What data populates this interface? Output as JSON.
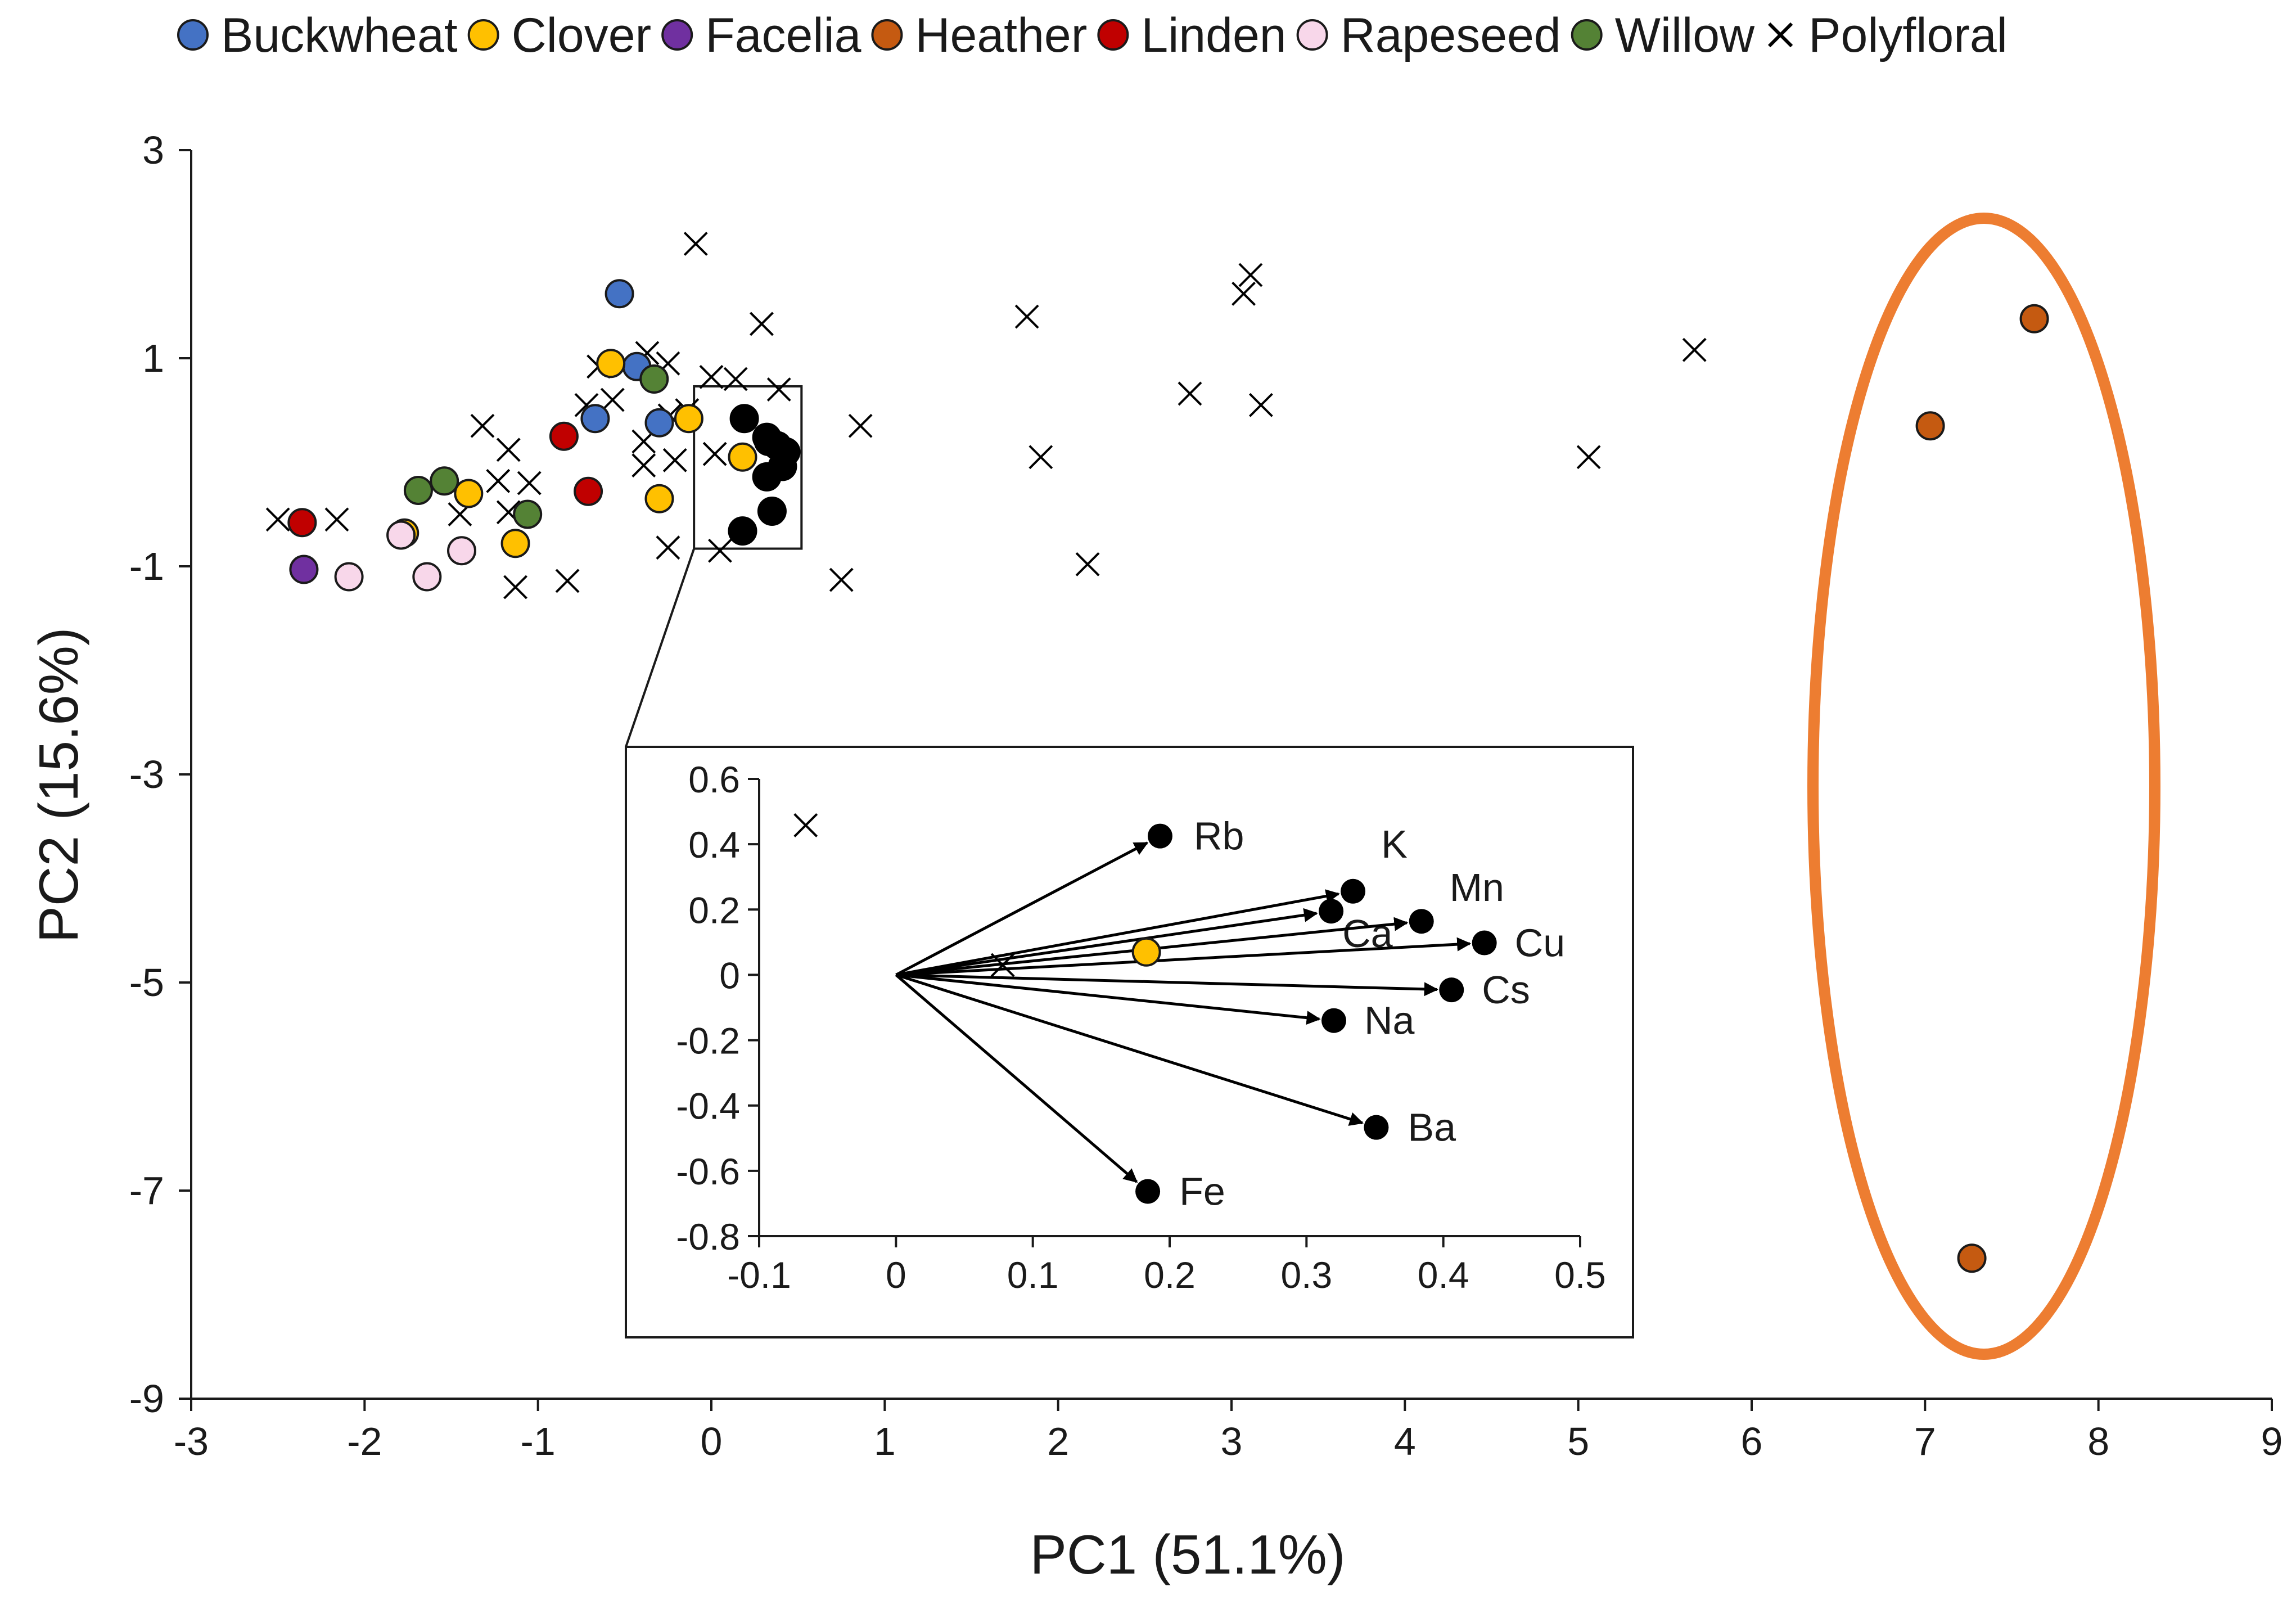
{
  "chart_data": {
    "type": "scatter",
    "title": "",
    "xlabel": "PC1 (51.1%)",
    "ylabel": "PC2 (15.6%)",
    "xlim": [
      -3,
      9
    ],
    "ylim": [
      -9,
      3
    ],
    "xticks": [
      "-3",
      "-2",
      "-1",
      "0",
      "1",
      "2",
      "3",
      "4",
      "5",
      "6",
      "7",
      "8",
      "9"
    ],
    "yticks": [
      "3",
      "1",
      "-1",
      "-3",
      "-5",
      "-7",
      "-9"
    ],
    "grid": false,
    "legend_position": "top",
    "legend": [
      {
        "name": "Buckwheat",
        "marker": "circle",
        "color": "#4472C4"
      },
      {
        "name": "Clover",
        "marker": "circle",
        "color": "#FFC000"
      },
      {
        "name": "Facelia",
        "marker": "circle",
        "color": "#7030A0"
      },
      {
        "name": "Heather",
        "marker": "circle",
        "color": "#C55A11"
      },
      {
        "name": "Linden",
        "marker": "circle",
        "color": "#C00000"
      },
      {
        "name": "Rapeseed",
        "marker": "circle",
        "color": "#F8D7EA"
      },
      {
        "name": "Willow",
        "marker": "circle",
        "color": "#548235"
      },
      {
        "name": "Polyfloral",
        "marker": "x",
        "color": "#000000"
      }
    ],
    "series": [
      {
        "name": "Buckwheat",
        "color": "#4472C4",
        "points": [
          [
            -0.53,
            1.62
          ],
          [
            -0.43,
            0.92
          ],
          [
            -0.67,
            0.42
          ],
          [
            -0.3,
            0.38
          ]
        ]
      },
      {
        "name": "Clover",
        "color": "#FFC000",
        "points": [
          [
            -0.58,
            0.95
          ],
          [
            -0.13,
            0.42
          ],
          [
            0.18,
            0.05
          ],
          [
            -0.3,
            -0.35
          ],
          [
            -1.4,
            -0.3
          ],
          [
            -1.13,
            -0.78
          ],
          [
            -1.77,
            -0.68
          ]
        ]
      },
      {
        "name": "Facelia",
        "color": "#7030A0",
        "points": [
          [
            -2.35,
            -1.03
          ]
        ]
      },
      {
        "name": "Heather",
        "color": "#C55A11",
        "points": [
          [
            7.63,
            1.38
          ],
          [
            7.03,
            0.35
          ],
          [
            7.27,
            -7.65
          ]
        ]
      },
      {
        "name": "Linden",
        "color": "#C00000",
        "points": [
          [
            -2.36,
            -0.58
          ],
          [
            -0.85,
            0.25
          ],
          [
            -0.71,
            -0.28
          ]
        ]
      },
      {
        "name": "Rapeseed",
        "color": "#F8D7EA",
        "points": [
          [
            -1.79,
            -0.7
          ],
          [
            -2.09,
            -1.1
          ],
          [
            -1.64,
            -1.1
          ],
          [
            -1.44,
            -0.85
          ]
        ]
      },
      {
        "name": "Willow",
        "color": "#548235",
        "points": [
          [
            -0.33,
            0.8
          ],
          [
            -1.69,
            -0.27
          ],
          [
            -1.54,
            -0.18
          ],
          [
            -1.06,
            -0.5
          ]
        ]
      },
      {
        "name": "Polyfloral",
        "color": "#000000",
        "points": [
          [
            -2.5,
            -0.55
          ],
          [
            -2.16,
            -0.55
          ],
          [
            -1.23,
            -0.18
          ],
          [
            -1.17,
            -0.48
          ],
          [
            -1.32,
            0.35
          ],
          [
            -1.17,
            0.12
          ],
          [
            -1.13,
            -1.2
          ],
          [
            -1.45,
            -0.5
          ],
          [
            -1.05,
            -0.2
          ],
          [
            -0.83,
            -1.14
          ],
          [
            -0.72,
            0.55
          ],
          [
            -0.65,
            0.92
          ],
          [
            -0.57,
            0.6
          ],
          [
            -0.39,
            0.2
          ],
          [
            -0.39,
            -0.03
          ],
          [
            -0.21,
            0.02
          ],
          [
            -0.14,
            0.5
          ],
          [
            -0.25,
            0.95
          ],
          [
            -0.37,
            1.05
          ],
          [
            -0.24,
            0.45
          ],
          [
            -0.25,
            -0.82
          ],
          [
            0.05,
            -0.85
          ],
          [
            0.02,
            0.08
          ],
          [
            0.0,
            0.82
          ],
          [
            0.14,
            0.8
          ],
          [
            0.29,
            1.33
          ],
          [
            0.39,
            0.7
          ],
          [
            -0.09,
            2.1
          ],
          [
            0.86,
            0.35
          ],
          [
            0.75,
            -1.13
          ],
          [
            1.82,
            1.4
          ],
          [
            1.9,
            0.05
          ],
          [
            2.17,
            -0.98
          ],
          [
            2.76,
            0.66
          ],
          [
            3.07,
            1.62
          ],
          [
            3.11,
            1.8
          ],
          [
            3.17,
            0.55
          ],
          [
            5.06,
            0.05
          ],
          [
            5.67,
            1.08
          ]
        ]
      }
    ],
    "annotations": [
      "Orange ellipse highlighting the three Heather samples",
      "Zoom box around the cluster of element loadings"
    ],
    "inset": {
      "type": "loading-vectors",
      "xlim": [
        -0.1,
        0.5
      ],
      "ylim": [
        -0.8,
        0.6
      ],
      "xticks": [
        "-0.1",
        "0",
        "0.1",
        "0.2",
        "0.3",
        "0.4",
        "0.5"
      ],
      "yticks": [
        "0.6",
        "0.4",
        "0.2",
        "0",
        "-0.2",
        "-0.4",
        "-0.6",
        "-0.8"
      ],
      "vectors": [
        {
          "label": "Rb",
          "x": 0.193,
          "y": 0.425
        },
        {
          "label": "K",
          "x": 0.334,
          "y": 0.256
        },
        {
          "label": "Ca",
          "x": 0.318,
          "y": 0.195
        },
        {
          "label": "Mn",
          "x": 0.384,
          "y": 0.164
        },
        {
          "label": "Cu",
          "x": 0.43,
          "y": 0.098
        },
        {
          "label": "Cs",
          "x": 0.406,
          "y": -0.046
        },
        {
          "label": "Na",
          "x": 0.32,
          "y": -0.14
        },
        {
          "label": "Ba",
          "x": 0.351,
          "y": -0.467
        },
        {
          "label": "Fe",
          "x": 0.184,
          "y": -0.663
        }
      ],
      "points": [
        {
          "series": "Polyfloral",
          "x": -0.066,
          "y": 0.458
        },
        {
          "series": "Polyfloral",
          "x": 0.078,
          "y": 0.03
        },
        {
          "series": "Clover",
          "x": 0.183,
          "y": 0.07
        }
      ]
    }
  }
}
